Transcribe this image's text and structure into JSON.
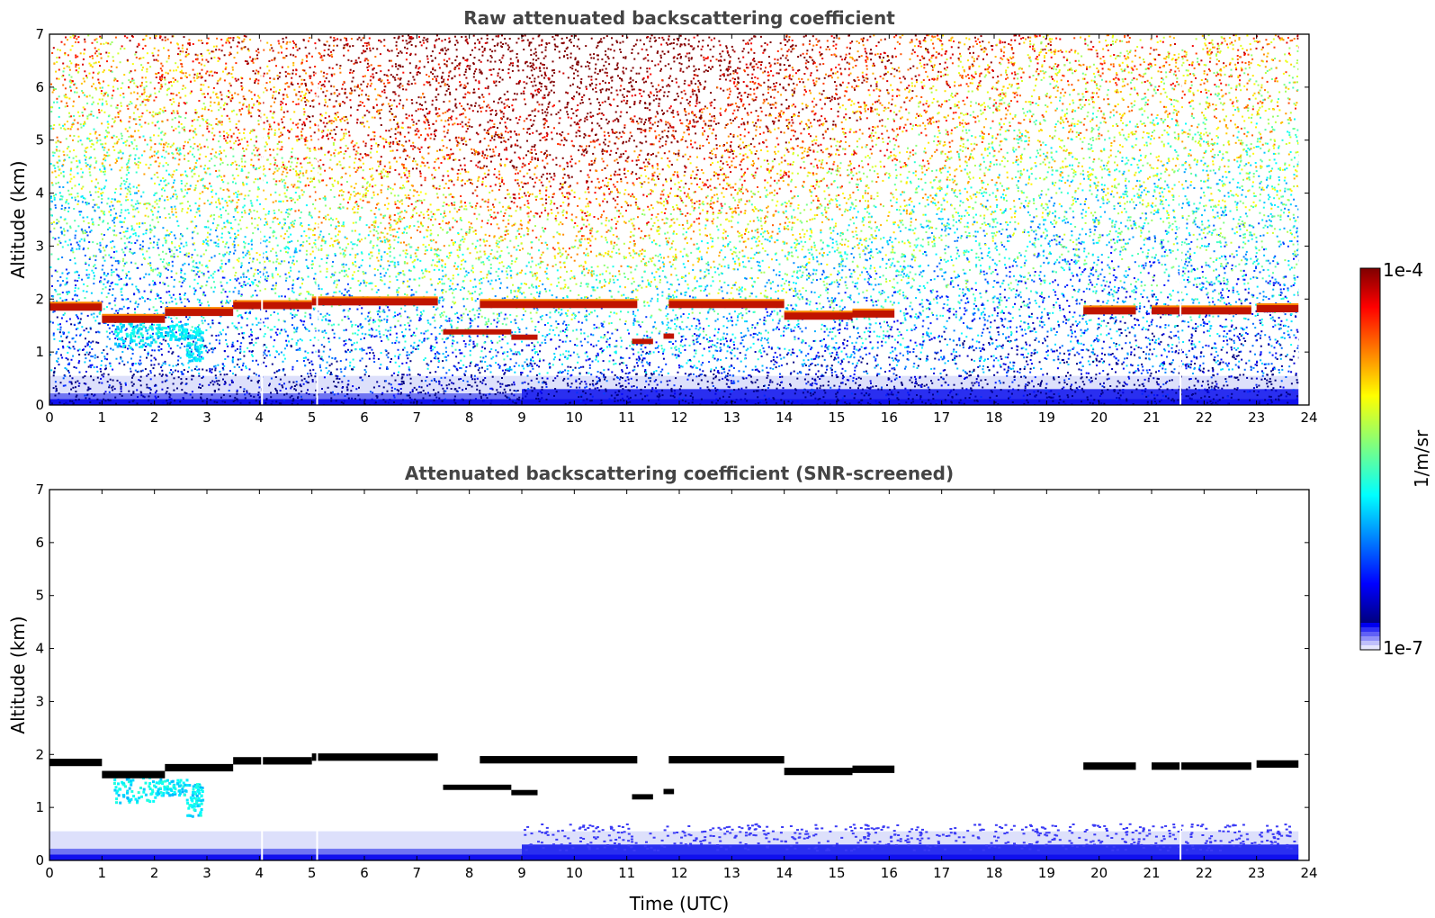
{
  "chart_data": [
    {
      "type": "heatmap",
      "title": "Raw attenuated backscattering coefficient",
      "xlabel": "",
      "ylabel": "Altitude (km)",
      "xlim": [
        0,
        24
      ],
      "ylim": [
        0,
        7
      ],
      "x_ticks": [
        "0",
        "1",
        "2",
        "3",
        "4",
        "5",
        "6",
        "7",
        "8",
        "9",
        "10",
        "11",
        "12",
        "13",
        "14",
        "15",
        "16",
        "17",
        "18",
        "19",
        "20",
        "21",
        "22",
        "23",
        "24"
      ],
      "y_ticks": [
        "0",
        "1",
        "2",
        "3",
        "4",
        "5",
        "6",
        "7"
      ],
      "grid": false,
      "colorbar": {
        "min_label": "1e-7",
        "max_label": "1e-4",
        "label": "1/m/sr",
        "scale": "log",
        "colormap": "jet"
      },
      "features": {
        "cloud_layer": [
          {
            "t0": 0.0,
            "t1": 1.0,
            "alt": 1.85
          },
          {
            "t0": 1.0,
            "t1": 2.2,
            "alt": 1.62
          },
          {
            "t0": 2.2,
            "t1": 3.5,
            "alt": 1.75
          },
          {
            "t0": 3.5,
            "t1": 5.0,
            "alt": 1.88
          },
          {
            "t0": 5.0,
            "t1": 7.4,
            "alt": 1.95
          },
          {
            "t0": 8.2,
            "t1": 11.2,
            "alt": 1.9
          },
          {
            "t0": 11.8,
            "t1": 14.0,
            "alt": 1.9
          },
          {
            "t0": 14.0,
            "t1": 15.3,
            "alt": 1.68
          },
          {
            "t0": 15.3,
            "t1": 16.1,
            "alt": 1.72
          },
          {
            "t0": 19.7,
            "t1": 20.7,
            "alt": 1.78
          },
          {
            "t0": 21.0,
            "t1": 22.9,
            "alt": 1.78
          },
          {
            "t0": 23.0,
            "t1": 23.8,
            "alt": 1.82
          }
        ],
        "lower_cloud_fragments": [
          {
            "t0": 7.5,
            "t1": 8.8,
            "alt": 1.38
          },
          {
            "t0": 8.8,
            "t1": 9.3,
            "alt": 1.28
          },
          {
            "t0": 11.1,
            "t1": 11.5,
            "alt": 1.2
          },
          {
            "t0": 11.7,
            "t1": 11.9,
            "alt": 1.3
          }
        ],
        "precipitation_fallstreaks": [
          {
            "t0": 1.2,
            "t1": 2.0,
            "top": 1.6,
            "bottom": 1.1
          },
          {
            "t0": 2.0,
            "t1": 2.6,
            "top": 1.55,
            "bottom": 1.25
          },
          {
            "t0": 2.6,
            "t1": 2.9,
            "top": 1.5,
            "bottom": 0.85
          }
        ],
        "boundary_layer_top_km": 0.55,
        "data_gaps_utc": [
          4.05,
          5.1,
          21.55
        ],
        "data_end_utc": 23.8
      }
    },
    {
      "type": "heatmap",
      "title": "Attenuated backscattering coefficient (SNR-screened)",
      "xlabel": "Time (UTC)",
      "ylabel": "Altitude (km)",
      "xlim": [
        0,
        24
      ],
      "ylim": [
        0,
        7
      ],
      "x_ticks": [
        "0",
        "1",
        "2",
        "3",
        "4",
        "5",
        "6",
        "7",
        "8",
        "9",
        "10",
        "11",
        "12",
        "13",
        "14",
        "15",
        "16",
        "17",
        "18",
        "19",
        "20",
        "21",
        "22",
        "23",
        "24"
      ],
      "y_ticks": [
        "0",
        "1",
        "2",
        "3",
        "4",
        "5",
        "6",
        "7"
      ],
      "grid": false,
      "features": {
        "cloud_layer_color": "black",
        "boundary_layer_top_km": 0.55,
        "data_gaps_utc": [
          4.05,
          5.1,
          21.55
        ],
        "data_end_utc": 23.8
      }
    }
  ]
}
